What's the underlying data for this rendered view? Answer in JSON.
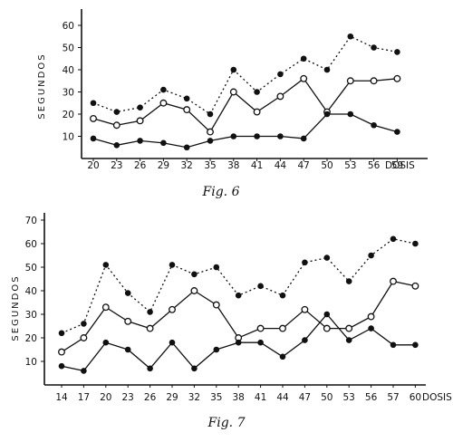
{
  "chart_data": [
    {
      "type": "line",
      "caption": "Fig. 6",
      "ylabel": "SEGUNDOS",
      "xlabel": "DOSIS",
      "categories": [
        "20",
        "23",
        "26",
        "29",
        "32",
        "35",
        "38",
        "41",
        "44",
        "47",
        "50",
        "53",
        "56",
        "59"
      ],
      "yticks": [
        "10",
        "20",
        "30",
        "40",
        "50",
        "60"
      ],
      "ylim": [
        0,
        65
      ],
      "series": [
        {
          "style": "dotted",
          "marker": "filled",
          "values": [
            25,
            21,
            23,
            31,
            27,
            20,
            40,
            30,
            38,
            45,
            40,
            55,
            50,
            48
          ]
        },
        {
          "style": "solid",
          "marker": "open",
          "values": [
            18,
            15,
            17,
            25,
            22,
            12,
            30,
            21,
            28,
            36,
            21,
            35,
            35,
            36
          ]
        },
        {
          "style": "solid",
          "marker": "filled",
          "values": [
            9,
            6,
            8,
            7,
            5,
            8,
            10,
            10,
            10,
            9,
            20,
            20,
            15,
            12
          ]
        }
      ]
    },
    {
      "type": "line",
      "caption": "Fig. 7",
      "ylabel": "SEGUNDOS",
      "xlabel": "DOSIS",
      "categories": [
        "14",
        "17",
        "20",
        "23",
        "26",
        "29",
        "32",
        "35",
        "38",
        "41",
        "44",
        "47",
        "50",
        "53",
        "56",
        "57",
        "60"
      ],
      "yticks": [
        "10",
        "20",
        "30",
        "40",
        "50",
        "60",
        "70"
      ],
      "ylim": [
        0,
        75
      ],
      "series": [
        {
          "style": "dotted",
          "marker": "filled",
          "values": [
            22,
            26,
            51,
            39,
            31,
            51,
            47,
            50,
            38,
            42,
            38,
            52,
            54,
            44,
            55,
            62,
            60
          ]
        },
        {
          "style": "solid",
          "marker": "open",
          "values": [
            14,
            20,
            33,
            27,
            24,
            32,
            40,
            34,
            20,
            24,
            24,
            32,
            24,
            24,
            29,
            44,
            42
          ]
        },
        {
          "style": "solid",
          "marker": "filled",
          "values": [
            8,
            6,
            18,
            15,
            7,
            18,
            7,
            15,
            18,
            18,
            12,
            19,
            30,
            19,
            24,
            17,
            17
          ]
        }
      ]
    }
  ]
}
